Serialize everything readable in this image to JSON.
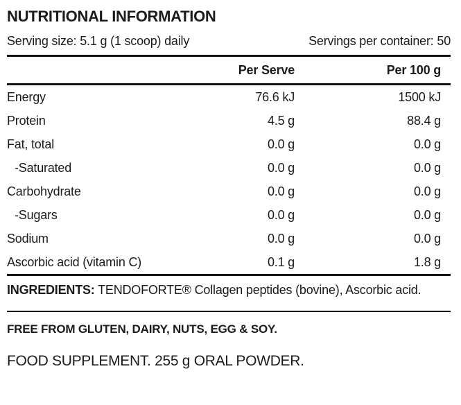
{
  "label": {
    "title": "NUTRITIONAL INFORMATION",
    "serving_size": "Serving size: 5.1 g (1 scoop) daily",
    "servings_per_container": "Servings per container: 50",
    "columns": {
      "per_serve": "Per Serve",
      "per_100g": "Per 100 g"
    },
    "rows": [
      {
        "name": "Energy",
        "per_serve": "76.6 kJ",
        "per_100g": "1500 kJ",
        "indent": false
      },
      {
        "name": "Protein",
        "per_serve": "4.5 g",
        "per_100g": "88.4 g",
        "indent": false
      },
      {
        "name": "Fat, total",
        "per_serve": "0.0 g",
        "per_100g": "0.0 g",
        "indent": false
      },
      {
        "name": "-Saturated",
        "per_serve": "0.0 g",
        "per_100g": "0.0 g",
        "indent": true
      },
      {
        "name": "Carbohydrate",
        "per_serve": "0.0 g",
        "per_100g": "0.0 g",
        "indent": false
      },
      {
        "name": "-Sugars",
        "per_serve": "0.0 g",
        "per_100g": "0.0 g",
        "indent": true
      },
      {
        "name": "Sodium",
        "per_serve": "0.0 g",
        "per_100g": "0.0 g",
        "indent": false
      },
      {
        "name": "Ascorbic acid (vitamin C)",
        "per_serve": "0.1 g",
        "per_100g": "1.8 g",
        "indent": false
      }
    ],
    "ingredients_label": "INGREDIENTS:",
    "ingredients_text": "TENDOFORTE® Collagen peptides (bovine), Ascorbic acid.",
    "free_from": "FREE FROM GLUTEN, DAIRY, NUTS, EGG & SOY.",
    "supplement": "FOOD SUPPLEMENT. 255 g ORAL POWDER."
  },
  "colors": {
    "background": "#ffffff",
    "text": "#1b1b1b",
    "rule": "#141414"
  }
}
